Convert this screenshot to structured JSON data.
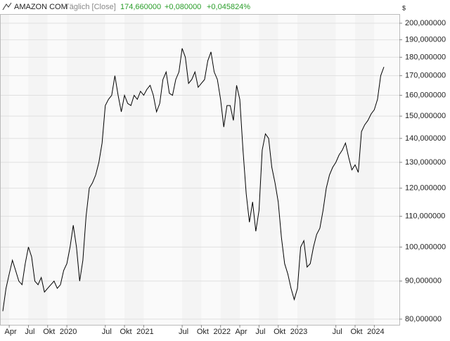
{
  "chart_data": {
    "type": "line",
    "title": "AMAZON COM",
    "subtitle": "Täglich [Close]",
    "last": "174,660000",
    "change": "+0,080000",
    "change_pct": "+0,045824%",
    "y_label": "$",
    "log_y": true,
    "grid": true,
    "color": "#000000",
    "categories": [
      null,
      null,
      "Apr",
      null,
      null,
      null,
      null,
      null,
      "Jul",
      null,
      null,
      null,
      null,
      null,
      "Okt",
      null,
      null,
      null,
      null,
      null,
      "2020",
      null,
      null,
      null,
      null,
      null,
      null,
      null,
      null,
      null,
      null,
      null,
      "Jul",
      null,
      null,
      null,
      null,
      null,
      "Okt",
      null,
      null,
      null,
      null,
      null,
      "2021",
      null,
      null,
      null,
      null,
      null,
      null,
      null,
      null,
      null,
      null,
      null,
      "Jul",
      null,
      null,
      null,
      null,
      null,
      "Okt",
      null,
      null,
      null,
      null,
      null,
      "2022",
      null,
      null,
      null,
      null,
      null,
      "Apr",
      null,
      null,
      null,
      null,
      null,
      "Jul",
      null,
      null,
      null,
      null,
      null,
      "Okt",
      null,
      null,
      null,
      null,
      null,
      "2023",
      null,
      null,
      null,
      null,
      null,
      null,
      null,
      null,
      null,
      null,
      null,
      "Jul",
      null,
      null,
      null,
      null,
      null,
      "Okt",
      null,
      null,
      null,
      null,
      null,
      "2024",
      null,
      null,
      null
    ],
    "values": [
      82,
      88,
      92,
      96,
      93,
      90,
      89,
      95,
      100,
      97,
      90,
      89,
      91,
      87,
      88,
      89,
      90,
      88,
      89,
      93,
      95,
      100,
      107,
      100,
      90,
      96,
      110,
      120,
      122,
      125,
      130,
      138,
      155,
      158,
      160,
      170,
      160,
      152,
      160,
      156,
      155,
      160,
      158,
      162,
      160,
      163,
      165,
      160,
      152,
      156,
      168,
      172,
      161,
      160,
      168,
      172,
      185,
      180,
      166,
      168,
      172,
      164,
      166,
      168,
      178,
      183,
      172,
      168,
      158,
      145,
      155,
      155,
      148,
      165,
      158,
      135,
      118,
      108,
      115,
      105,
      112,
      135,
      142,
      140,
      128,
      122,
      115,
      103,
      95,
      92,
      88,
      85,
      88,
      100,
      102,
      94,
      95,
      100,
      104,
      106,
      112,
      120,
      125,
      128,
      130,
      133,
      135,
      138,
      132,
      127,
      129,
      126,
      143,
      146,
      148,
      151,
      153,
      158,
      170,
      174.66
    ],
    "ylim": [
      78.6,
      205.3
    ],
    "yticks": [
      {
        "value": 80,
        "label": "80,000000"
      },
      {
        "value": 90,
        "label": "90,000000"
      },
      {
        "value": 100,
        "label": "100,000000"
      },
      {
        "value": 110,
        "label": "110,000000"
      },
      {
        "value": 120,
        "label": "120,000000"
      },
      {
        "value": 130,
        "label": "130,000000"
      },
      {
        "value": 140,
        "label": "140,000000"
      },
      {
        "value": 150,
        "label": "150,000000"
      },
      {
        "value": 160,
        "label": "160,000000"
      },
      {
        "value": 170,
        "label": "170,000000"
      },
      {
        "value": 180,
        "label": "180,000000"
      },
      {
        "value": 190,
        "label": "190,000000"
      },
      {
        "value": 200,
        "label": "200,000000"
      }
    ]
  }
}
